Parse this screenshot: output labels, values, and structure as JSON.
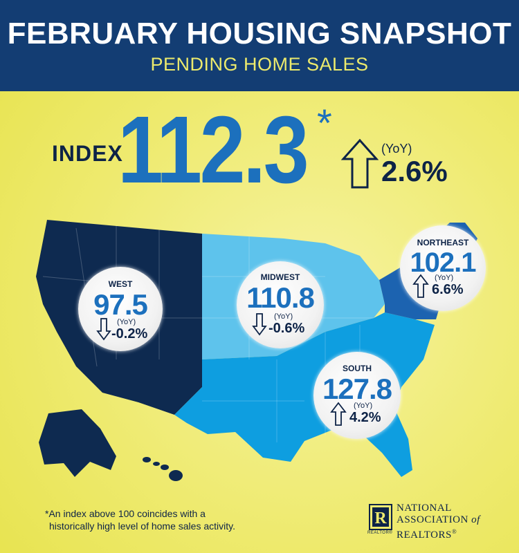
{
  "header": {
    "title": "FEBRUARY HOUSING SNAPSHOT",
    "subtitle": "PENDING HOME SALES"
  },
  "national": {
    "label": "INDEX",
    "value": "112.3",
    "asterisk": "*",
    "yoy_label": "(YoY)",
    "change": "2.6%",
    "direction": "up"
  },
  "regions": [
    {
      "name": "WEST",
      "value": "97.5",
      "yoy_label": "(YoY)",
      "change": "-0.2%",
      "direction": "down"
    },
    {
      "name": "MIDWEST",
      "value": "110.8",
      "yoy_label": "(YoY)",
      "change": "-0.6%",
      "direction": "down"
    },
    {
      "name": "NORTHEAST",
      "value": "102.1",
      "yoy_label": "(YoY)",
      "change": "6.6%",
      "direction": "up"
    },
    {
      "name": "SOUTH",
      "value": "127.8",
      "yoy_label": "(YoY)",
      "change": "4.2%",
      "direction": "up"
    }
  ],
  "colors": {
    "header_bg": "#133d73",
    "subtitle": "#ecea6c",
    "background": "#eeea6e",
    "accent_blue": "#1c70bd",
    "west": "#0e2a50",
    "midwest": "#5ec3ec",
    "south": "#0e9ee0",
    "northeast": "#1c63b0"
  },
  "footnote": {
    "line1": "*An index above 100 coincides with a",
    "line2": "historically high level of home sales activity."
  },
  "logo": {
    "letter": "R",
    "line1": "NATIONAL",
    "line2": "ASSOCIATION",
    "line2_suffix": "of",
    "line3": "REALTORS",
    "line3_mark": "®",
    "realtor_mark": "REALTOR®"
  }
}
